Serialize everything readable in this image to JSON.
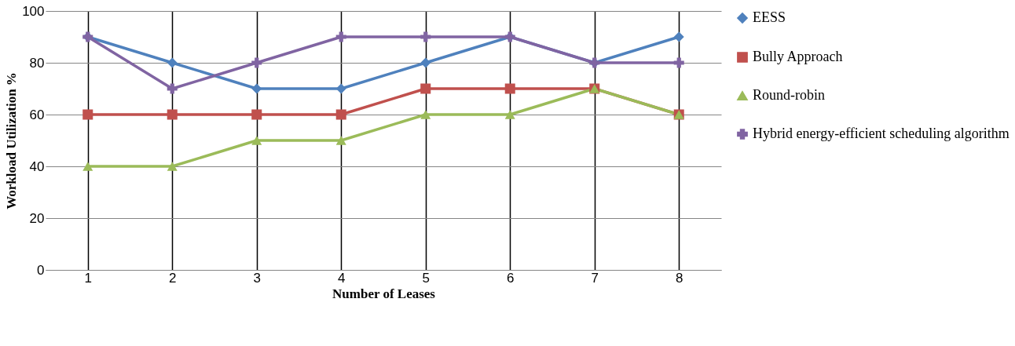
{
  "chart_data": {
    "type": "line",
    "xlabel": "Number of Leases",
    "ylabel": "Workload Utilization %",
    "categories": [
      "1",
      "2",
      "3",
      "4",
      "5",
      "6",
      "7",
      "8"
    ],
    "series": [
      {
        "name": "EESS",
        "color": "#4f81bd",
        "marker": "diamond",
        "values": [
          90,
          80,
          70,
          70,
          80,
          90,
          80,
          90
        ]
      },
      {
        "name": "Bully Approach",
        "color": "#c0504d",
        "marker": "square",
        "values": [
          60,
          60,
          60,
          60,
          70,
          70,
          70,
          60
        ]
      },
      {
        "name": "Round-robin",
        "color": "#9bbb59",
        "marker": "triangle",
        "values": [
          40,
          40,
          50,
          50,
          60,
          60,
          70,
          60
        ]
      },
      {
        "name": "Hybrid energy-efficient scheduling algorithm",
        "color": "#8064a2",
        "marker": "cross",
        "values": [
          90,
          70,
          80,
          90,
          90,
          90,
          80,
          80
        ]
      }
    ],
    "ylim": [
      0,
      100
    ],
    "yticks": [
      0,
      20,
      40,
      60,
      80,
      100
    ],
    "grid": true,
    "legend": "right",
    "line_style": "solid"
  }
}
